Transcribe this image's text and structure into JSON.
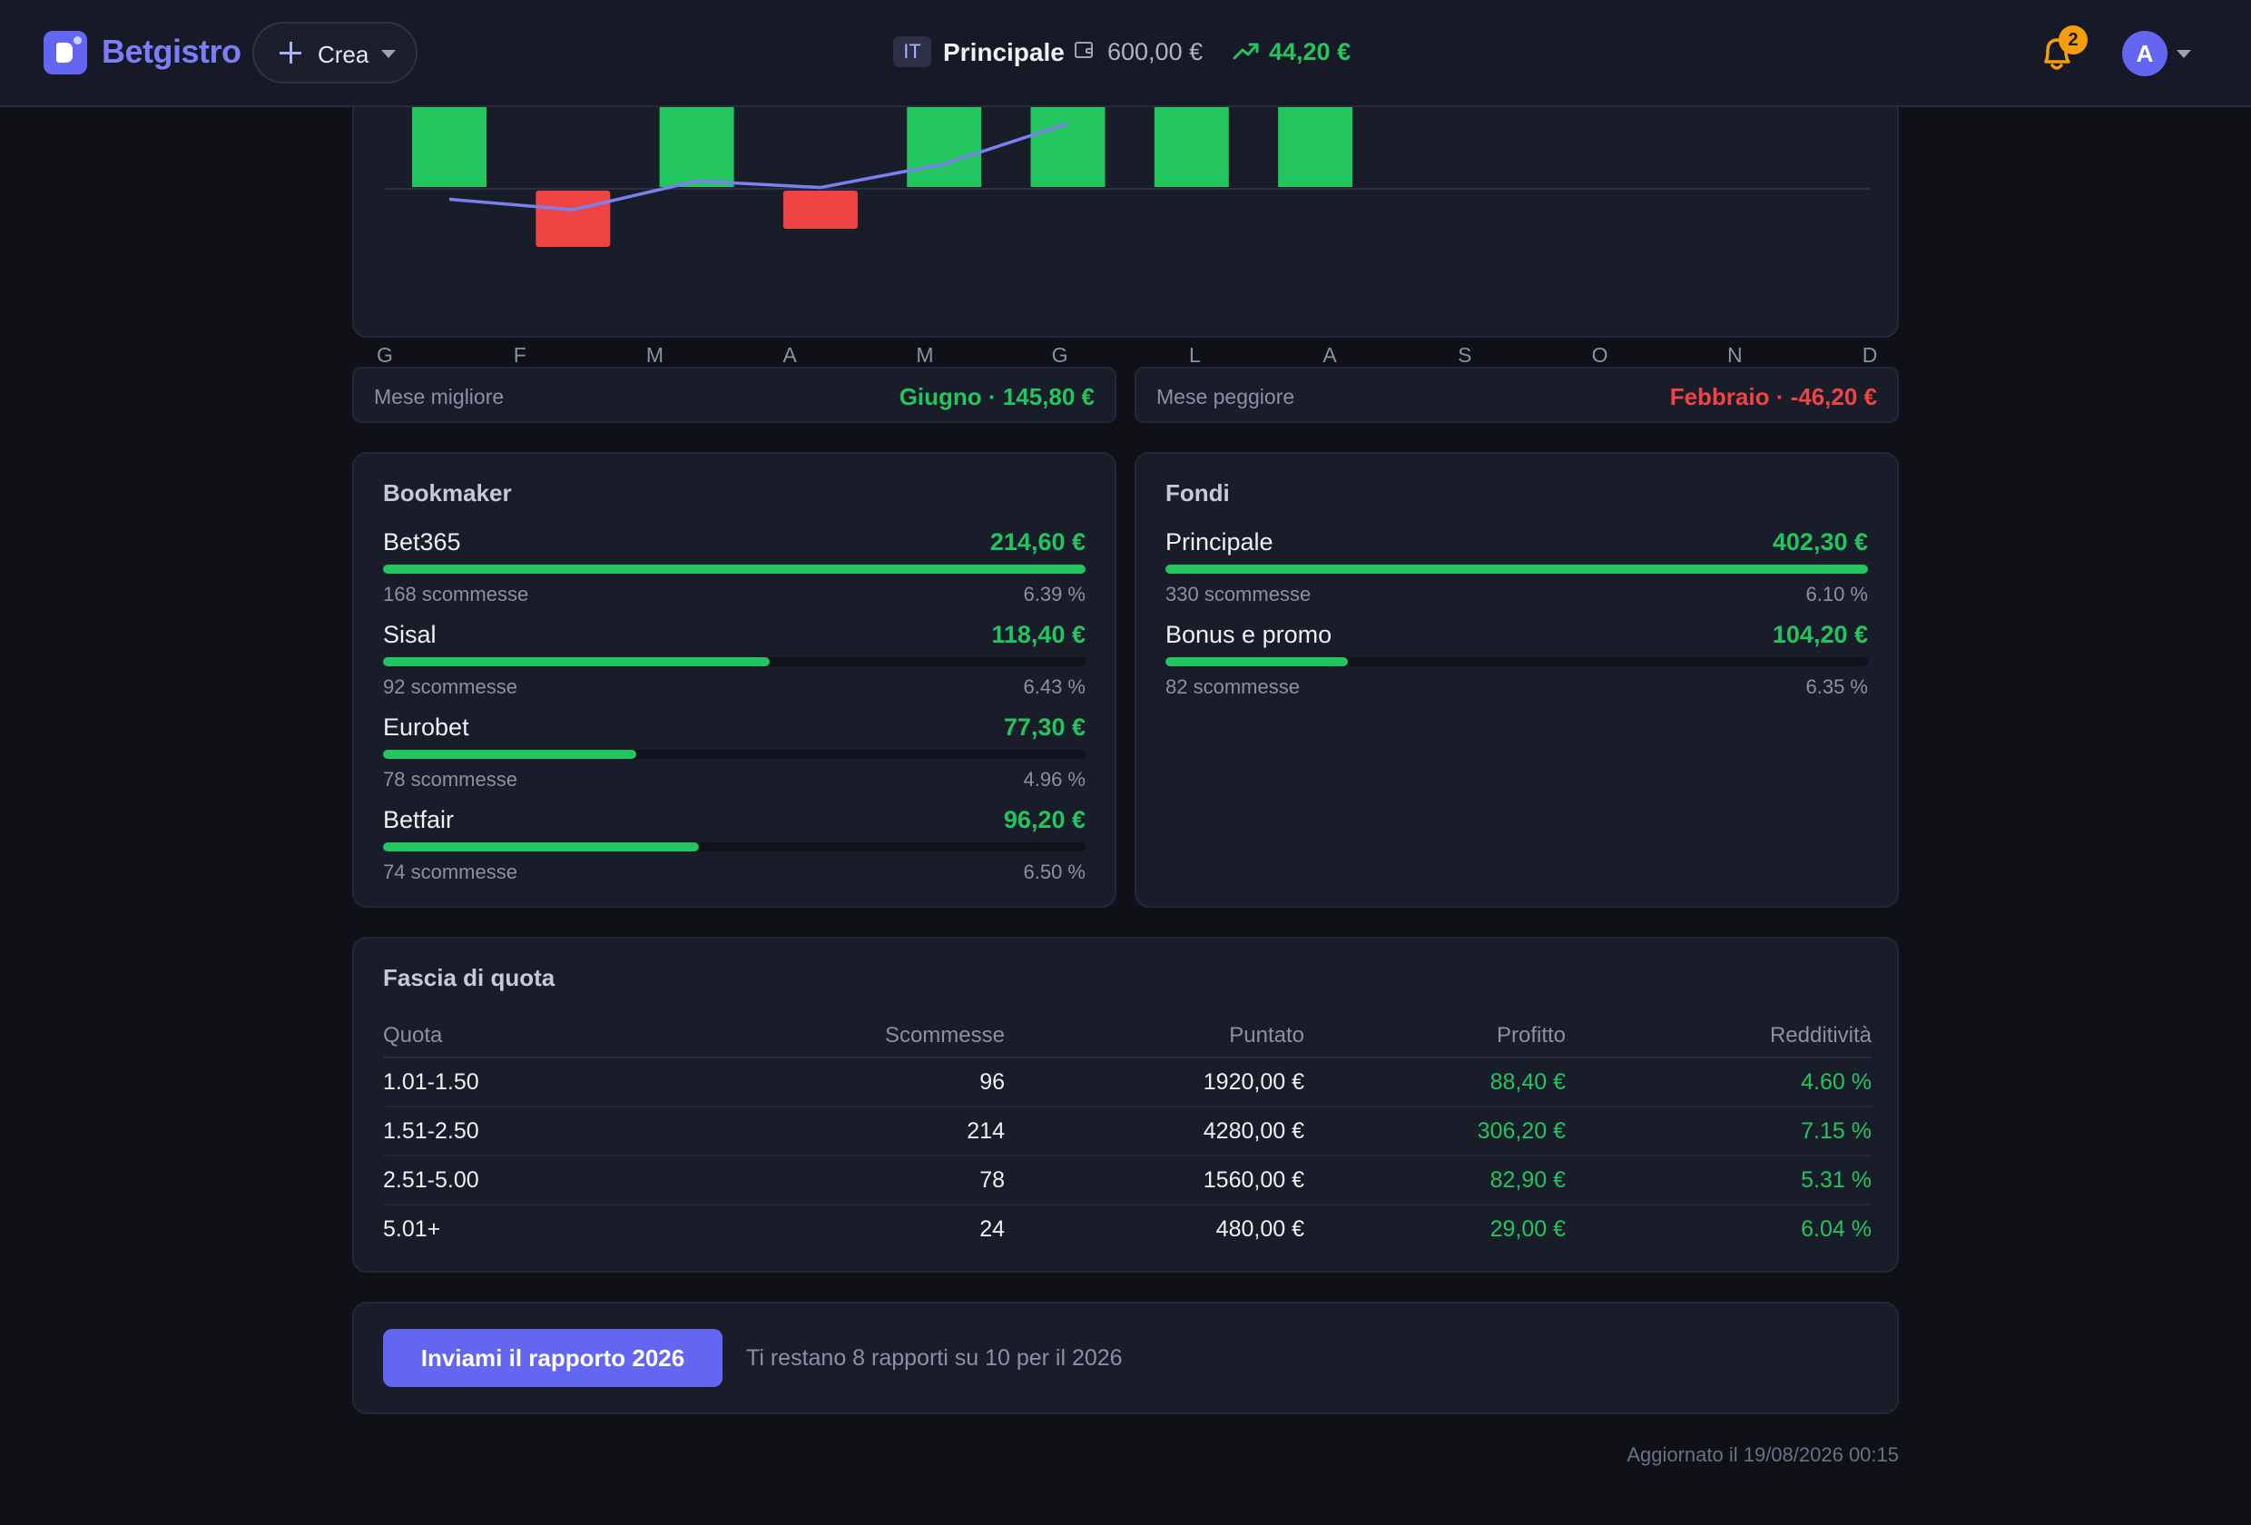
{
  "header": {
    "brand": "Betgistro",
    "create_label": "Crea",
    "account_flag": "IT",
    "account_name": "Principale",
    "balance": "600,00 €",
    "profit": "44,20 €",
    "notifications_count": "2",
    "avatar_initial": "A",
    "icons": [
      "logo-icon",
      "plus-icon",
      "chevron-down-icon",
      "wallet-icon",
      "trend-up-icon",
      "bell-icon"
    ]
  },
  "chart_data": {
    "type": "bar",
    "categories": [
      "G",
      "F",
      "M",
      "A",
      "M",
      "G",
      "L",
      "A",
      "S",
      "O",
      "N",
      "D"
    ],
    "series": [
      {
        "type": "bar",
        "values": [
          null,
          -46.2,
          null,
          -34,
          null,
          null,
          null,
          null,
          null,
          null,
          null,
          null
        ]
      },
      {
        "type": "line",
        "values": [
          -16,
          -32,
          12,
          2,
          38,
          100,
          null,
          null,
          null,
          null,
          null,
          null
        ]
      }
    ],
    "colors": {
      "positive": "#22c55e",
      "negative": "#ef4444",
      "line": "#7c7ff0"
    }
  },
  "summary": {
    "best_label": "Mese migliore",
    "best_value": "Giugno · 145,80 €",
    "worst_label": "Mese peggiore",
    "worst_value": "Febbraio · -46,20 €"
  },
  "bookmakers": {
    "title": "Bookmaker",
    "items": [
      {
        "name": "Bet365",
        "amount": "214,60 €",
        "bets": "168 scommesse",
        "roi": "6.39 %",
        "fill": 1.0
      },
      {
        "name": "Sisal",
        "amount": "118,40 €",
        "bets": "92 scommesse",
        "roi": "6.43 %",
        "fill": 0.55
      },
      {
        "name": "Eurobet",
        "amount": "77,30 €",
        "bets": "78 scommesse",
        "roi": "4.96 %",
        "fill": 0.36
      },
      {
        "name": "Betfair",
        "amount": "96,20 €",
        "bets": "74 scommesse",
        "roi": "6.50 %",
        "fill": 0.45
      }
    ]
  },
  "funds": {
    "title": "Fondi",
    "items": [
      {
        "name": "Principale",
        "amount": "402,30 €",
        "bets": "330 scommesse",
        "roi": "6.10 %",
        "fill": 1.0
      },
      {
        "name": "Bonus e promo",
        "amount": "104,20 €",
        "bets": "82 scommesse",
        "roi": "6.35 %",
        "fill": 0.26
      }
    ]
  },
  "odds": {
    "title": "Fascia di quota",
    "headers": [
      "Quota",
      "Scommesse",
      "Puntato",
      "Profitto",
      "Redditività"
    ],
    "rows": [
      [
        "1.01-1.50",
        "96",
        "1920,00 €",
        "88,40 €",
        "4.60 %"
      ],
      [
        "1.51-2.50",
        "214",
        "4280,00 €",
        "306,20 €",
        "7.15 %"
      ],
      [
        "2.51-5.00",
        "78",
        "1560,00 €",
        "82,90 €",
        "5.31 %"
      ],
      [
        "5.01+",
        "24",
        "480,00 €",
        "29,00 €",
        "6.04 %"
      ]
    ]
  },
  "report": {
    "button_label": "Inviami il rapporto 2026",
    "note": "Ti restano 8 rapporti su 10 per il 2026"
  },
  "footer": {
    "updated": "Aggiornato il 19/08/2026 00:15"
  }
}
